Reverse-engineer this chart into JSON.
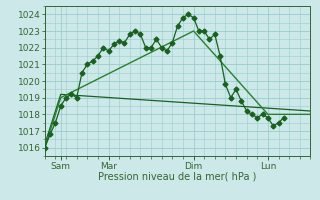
{
  "xlabel": "Pression niveau de la mer( hPa )",
  "bg_color": "#cce8e8",
  "grid_color": "#99cccc",
  "ylim": [
    1015.5,
    1024.5
  ],
  "yticks": [
    1016,
    1017,
    1018,
    1019,
    1020,
    1021,
    1022,
    1023,
    1024
  ],
  "xlim": [
    0,
    300
  ],
  "xtick_positions": [
    18,
    72,
    168,
    252
  ],
  "xtick_labels": [
    "Sam",
    "Mar",
    "Dim",
    "Lun"
  ],
  "line1_x": [
    0,
    6,
    12,
    18,
    24,
    30,
    36,
    42,
    48,
    54,
    60,
    66,
    72,
    78,
    84,
    90,
    96,
    102,
    108,
    114,
    120,
    126,
    132,
    138,
    144,
    150,
    156,
    162,
    168,
    174,
    180,
    186,
    192,
    198,
    204,
    210,
    216,
    222,
    228,
    234,
    240,
    246,
    252,
    258,
    264,
    270
  ],
  "line1_y": [
    1016.0,
    1016.8,
    1017.5,
    1018.5,
    1019.0,
    1019.2,
    1019.0,
    1020.5,
    1021.0,
    1021.2,
    1021.5,
    1022.0,
    1021.8,
    1022.2,
    1022.4,
    1022.3,
    1022.8,
    1023.0,
    1022.8,
    1022.0,
    1022.0,
    1022.5,
    1022.0,
    1021.8,
    1022.3,
    1023.3,
    1023.8,
    1024.0,
    1023.8,
    1023.0,
    1023.0,
    1022.5,
    1022.8,
    1021.5,
    1019.8,
    1019.0,
    1019.5,
    1018.8,
    1018.2,
    1018.0,
    1017.8,
    1018.0,
    1017.8,
    1017.3,
    1017.5,
    1017.8
  ],
  "line2_x": [
    0,
    18,
    168,
    252,
    300
  ],
  "line2_y": [
    1016.0,
    1019.0,
    1023.0,
    1018.0,
    1018.0
  ],
  "line3_x": [
    0,
    18,
    300
  ],
  "line3_y": [
    1016.2,
    1019.2,
    1018.2
  ],
  "line1_color": "#1a6020",
  "line2_color": "#2a8030",
  "line3_color": "#1a6020",
  "marker": "D",
  "marker_size": 2.5,
  "ylabel_fontsize": 7,
  "tick_label_fontsize": 6.5,
  "tick_color": "#336633"
}
